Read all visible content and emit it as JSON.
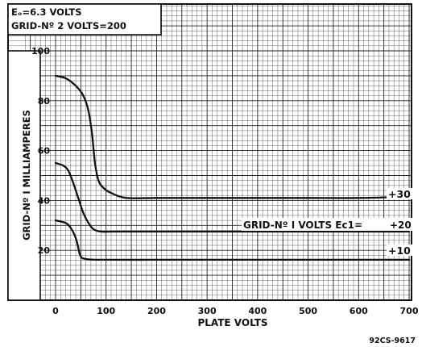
{
  "chart_data": {
    "type": "line",
    "corner_notes": [
      "Eₒ=6.3 VOLTS",
      "GRID-Nº 2 VOLTS=200"
    ],
    "xlabel": "PLATE VOLTS",
    "ylabel": "GRID-Nº I MILLIAMPERES",
    "xlim": [
      0,
      700
    ],
    "ylim": [
      0,
      100
    ],
    "x_ticks": [
      "0",
      "100",
      "200",
      "300",
      "400",
      "500",
      "600",
      "700"
    ],
    "y_ticks": [
      "20",
      "40",
      "60",
      "80",
      "100"
    ],
    "grid": true,
    "series_group_label": "GRID-Nº I VOLTS Ec1=",
    "series": [
      {
        "name": "+30",
        "x": [
          0,
          20,
          40,
          55,
          65,
          72,
          78,
          85,
          95,
          110,
          140,
          200,
          300,
          400,
          500,
          600,
          700
        ],
        "y": [
          90,
          89,
          86,
          82,
          76,
          67,
          55,
          48,
          45,
          43,
          41,
          41,
          41,
          41,
          41,
          41,
          41.5
        ]
      },
      {
        "name": "+20",
        "x": [
          0,
          15,
          25,
          35,
          45,
          55,
          65,
          75,
          90,
          120,
          200,
          300,
          400,
          500,
          600,
          700
        ],
        "y": [
          55,
          54,
          52,
          47,
          41,
          35,
          31,
          28.5,
          27.5,
          27.5,
          27.5,
          27.5,
          27.5,
          27.5,
          27.5,
          27.5
        ]
      },
      {
        "name": "+10",
        "x": [
          0,
          20,
          30,
          38,
          44,
          47,
          50,
          55,
          70,
          100,
          200,
          300,
          400,
          500,
          600,
          700
        ],
        "y": [
          32,
          31,
          29,
          26,
          22,
          19,
          17.5,
          16.7,
          16.3,
          16.2,
          16.2,
          16.2,
          16.2,
          16.2,
          16.2,
          16.2
        ]
      }
    ]
  },
  "figure_code": "92CS-9617"
}
